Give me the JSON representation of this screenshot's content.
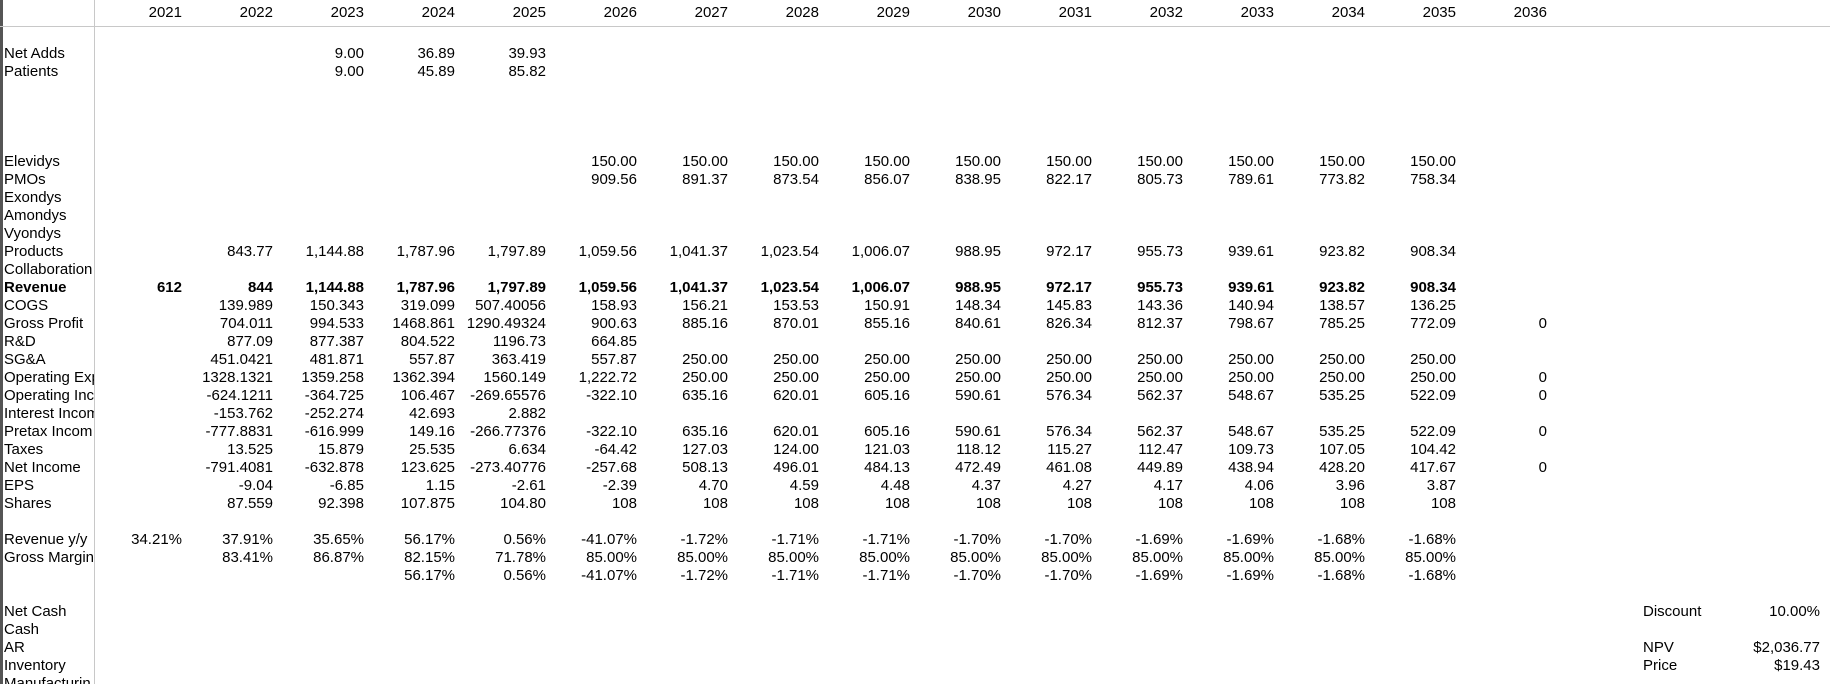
{
  "header": {
    "years": [
      "2021",
      "2022",
      "2023",
      "2024",
      "2025",
      "2026",
      "2027",
      "2028",
      "2029",
      "2030",
      "2031",
      "2032",
      "2033",
      "2034",
      "2035",
      "2036"
    ]
  },
  "rows": [
    null,
    {
      "label": "Net Adds",
      "cells": [
        null,
        null,
        "9.00",
        "36.89",
        "39.93",
        null,
        null,
        null,
        null,
        null,
        null,
        null,
        null,
        null,
        null,
        null
      ]
    },
    {
      "label": "Patients",
      "cells": [
        null,
        null,
        "9.00",
        "45.89",
        "85.82",
        null,
        null,
        null,
        null,
        null,
        null,
        null,
        null,
        null,
        null,
        null
      ]
    },
    null,
    null,
    null,
    null,
    {
      "label": "Elevidys",
      "cells": [
        null,
        null,
        null,
        null,
        null,
        "150.00",
        "150.00",
        "150.00",
        "150.00",
        "150.00",
        "150.00",
        "150.00",
        "150.00",
        "150.00",
        "150.00",
        null
      ]
    },
    {
      "label": "PMOs",
      "cells": [
        null,
        null,
        null,
        null,
        null,
        "909.56",
        "891.37",
        "873.54",
        "856.07",
        "838.95",
        "822.17",
        "805.73",
        "789.61",
        "773.82",
        "758.34",
        null
      ]
    },
    {
      "label": "Exondys"
    },
    {
      "label": "Amondys"
    },
    {
      "label": "Vyondys"
    },
    {
      "label": "Products",
      "cells": [
        null,
        "843.77",
        "1,144.88",
        "1,787.96",
        "1,797.89",
        "1,059.56",
        "1,041.37",
        "1,023.54",
        "1,006.07",
        "988.95",
        "972.17",
        "955.73",
        "939.61",
        "923.82",
        "908.34",
        null
      ]
    },
    {
      "label": "Collaboration"
    },
    {
      "label": "Revenue",
      "bold": true,
      "cells": [
        "612",
        "844",
        "1,144.88",
        "1,787.96",
        "1,797.89",
        "1,059.56",
        "1,041.37",
        "1,023.54",
        "1,006.07",
        "988.95",
        "972.17",
        "955.73",
        "939.61",
        "923.82",
        "908.34",
        null
      ]
    },
    {
      "label": "COGS",
      "cells": [
        null,
        "139.989",
        "150.343",
        "319.099",
        "507.40056",
        "158.93",
        "156.21",
        "153.53",
        "150.91",
        "148.34",
        "145.83",
        "143.36",
        "140.94",
        "138.57",
        "136.25",
        null
      ]
    },
    {
      "label": "Gross Profit",
      "cells": [
        null,
        "704.011",
        "994.533",
        "1468.861",
        "1290.49324",
        "900.63",
        "885.16",
        "870.01",
        "855.16",
        "840.61",
        "826.34",
        "812.37",
        "798.67",
        "785.25",
        "772.09",
        "0"
      ]
    },
    {
      "label": "R&D",
      "cells": [
        null,
        "877.09",
        "877.387",
        "804.522",
        "1196.73",
        "664.85",
        null,
        null,
        null,
        null,
        null,
        null,
        null,
        null,
        null,
        null
      ]
    },
    {
      "label": "SG&A",
      "cells": [
        null,
        "451.0421",
        "481.871",
        "557.87",
        "363.419",
        "557.87",
        "250.00",
        "250.00",
        "250.00",
        "250.00",
        "250.00",
        "250.00",
        "250.00",
        "250.00",
        "250.00",
        null
      ]
    },
    {
      "label": "Operating Exp",
      "cells": [
        null,
        "1328.1321",
        "1359.258",
        "1362.394",
        "1560.149",
        "1,222.72",
        "250.00",
        "250.00",
        "250.00",
        "250.00",
        "250.00",
        "250.00",
        "250.00",
        "250.00",
        "250.00",
        "0"
      ]
    },
    {
      "label": "Operating Inc",
      "cells": [
        null,
        "-624.1211",
        "-364.725",
        "106.467",
        "-269.65576",
        "-322.10",
        "635.16",
        "620.01",
        "605.16",
        "590.61",
        "576.34",
        "562.37",
        "548.67",
        "535.25",
        "522.09",
        "0"
      ]
    },
    {
      "label": "Interest Incom",
      "cells": [
        null,
        "-153.762",
        "-252.274",
        "42.693",
        "2.882",
        null,
        null,
        null,
        null,
        null,
        null,
        null,
        null,
        null,
        null,
        null
      ]
    },
    {
      "label": "Pretax Incom",
      "cells": [
        null,
        "-777.8831",
        "-616.999",
        "149.16",
        "-266.77376",
        "-322.10",
        "635.16",
        "620.01",
        "605.16",
        "590.61",
        "576.34",
        "562.37",
        "548.67",
        "535.25",
        "522.09",
        "0"
      ]
    },
    {
      "label": "Taxes",
      "cells": [
        null,
        "13.525",
        "15.879",
        "25.535",
        "6.634",
        "-64.42",
        "127.03",
        "124.00",
        "121.03",
        "118.12",
        "115.27",
        "112.47",
        "109.73",
        "107.05",
        "104.42",
        null
      ]
    },
    {
      "label": "Net Income",
      "cells": [
        null,
        "-791.4081",
        "-632.878",
        "123.625",
        "-273.40776",
        "-257.68",
        "508.13",
        "496.01",
        "484.13",
        "472.49",
        "461.08",
        "449.89",
        "438.94",
        "428.20",
        "417.67",
        "0"
      ]
    },
    {
      "label": "EPS",
      "cells": [
        null,
        "-9.04",
        "-6.85",
        "1.15",
        "-2.61",
        "-2.39",
        "4.70",
        "4.59",
        "4.48",
        "4.37",
        "4.27",
        "4.17",
        "4.06",
        "3.96",
        "3.87",
        null
      ]
    },
    {
      "label": "Shares",
      "cells": [
        null,
        "87.559",
        "92.398",
        "107.875",
        "104.80",
        "108",
        "108",
        "108",
        "108",
        "108",
        "108",
        "108",
        "108",
        "108",
        "108",
        null
      ]
    },
    null,
    {
      "label": "Revenue y/y",
      "cells": [
        "34.21%",
        "37.91%",
        "35.65%",
        "56.17%",
        "0.56%",
        "-41.07%",
        "-1.72%",
        "-1.71%",
        "-1.71%",
        "-1.70%",
        "-1.70%",
        "-1.69%",
        "-1.69%",
        "-1.68%",
        "-1.68%",
        null
      ]
    },
    {
      "label": "Gross Margin",
      "cells": [
        null,
        "83.41%",
        "86.87%",
        "82.15%",
        "71.78%",
        "85.00%",
        "85.00%",
        "85.00%",
        "85.00%",
        "85.00%",
        "85.00%",
        "85.00%",
        "85.00%",
        "85.00%",
        "85.00%",
        null
      ]
    },
    {
      "label": null,
      "cells": [
        null,
        null,
        null,
        "56.17%",
        "0.56%",
        "-41.07%",
        "-1.72%",
        "-1.71%",
        "-1.71%",
        "-1.70%",
        "-1.70%",
        "-1.69%",
        "-1.69%",
        "-1.68%",
        "-1.68%",
        null
      ]
    },
    null,
    {
      "label": "Net Cash",
      "side": [
        "Discount",
        "10.00%"
      ]
    },
    {
      "label": "Cash"
    },
    {
      "label": "AR",
      "side": [
        "NPV",
        "$2,036.77"
      ]
    },
    {
      "label": "Inventory",
      "side": [
        "Price",
        "$19.43"
      ]
    },
    {
      "label": "Manufacturin"
    }
  ]
}
